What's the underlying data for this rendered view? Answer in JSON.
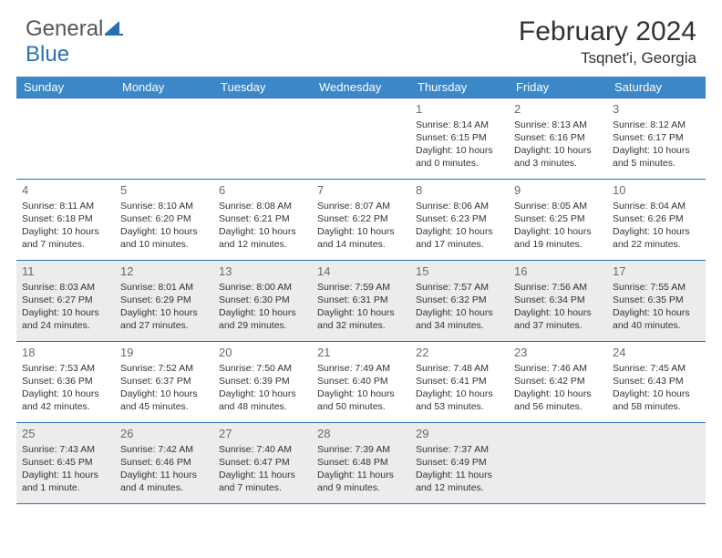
{
  "brand": {
    "part1": "General",
    "part2": "Blue"
  },
  "title": "February 2024",
  "location": "Tsqnet'i, Georgia",
  "colors": {
    "header_bg": "#3b87c8",
    "border": "#2a6fb5",
    "shade": "#ececec",
    "text": "#333333",
    "daynum": "#6a6a6a"
  },
  "day_names": [
    "Sunday",
    "Monday",
    "Tuesday",
    "Wednesday",
    "Thursday",
    "Friday",
    "Saturday"
  ],
  "weeks": [
    [
      {
        "empty": true
      },
      {
        "empty": true
      },
      {
        "empty": true
      },
      {
        "empty": true
      },
      {
        "num": "1",
        "sunrise": "Sunrise: 8:14 AM",
        "sunset": "Sunset: 6:15 PM",
        "daylight": "Daylight: 10 hours and 0 minutes."
      },
      {
        "num": "2",
        "sunrise": "Sunrise: 8:13 AM",
        "sunset": "Sunset: 6:16 PM",
        "daylight": "Daylight: 10 hours and 3 minutes."
      },
      {
        "num": "3",
        "sunrise": "Sunrise: 8:12 AM",
        "sunset": "Sunset: 6:17 PM",
        "daylight": "Daylight: 10 hours and 5 minutes."
      }
    ],
    [
      {
        "num": "4",
        "sunrise": "Sunrise: 8:11 AM",
        "sunset": "Sunset: 6:18 PM",
        "daylight": "Daylight: 10 hours and 7 minutes."
      },
      {
        "num": "5",
        "sunrise": "Sunrise: 8:10 AM",
        "sunset": "Sunset: 6:20 PM",
        "daylight": "Daylight: 10 hours and 10 minutes."
      },
      {
        "num": "6",
        "sunrise": "Sunrise: 8:08 AM",
        "sunset": "Sunset: 6:21 PM",
        "daylight": "Daylight: 10 hours and 12 minutes."
      },
      {
        "num": "7",
        "sunrise": "Sunrise: 8:07 AM",
        "sunset": "Sunset: 6:22 PM",
        "daylight": "Daylight: 10 hours and 14 minutes."
      },
      {
        "num": "8",
        "sunrise": "Sunrise: 8:06 AM",
        "sunset": "Sunset: 6:23 PM",
        "daylight": "Daylight: 10 hours and 17 minutes."
      },
      {
        "num": "9",
        "sunrise": "Sunrise: 8:05 AM",
        "sunset": "Sunset: 6:25 PM",
        "daylight": "Daylight: 10 hours and 19 minutes."
      },
      {
        "num": "10",
        "sunrise": "Sunrise: 8:04 AM",
        "sunset": "Sunset: 6:26 PM",
        "daylight": "Daylight: 10 hours and 22 minutes."
      }
    ],
    [
      {
        "num": "11",
        "sunrise": "Sunrise: 8:03 AM",
        "sunset": "Sunset: 6:27 PM",
        "daylight": "Daylight: 10 hours and 24 minutes."
      },
      {
        "num": "12",
        "sunrise": "Sunrise: 8:01 AM",
        "sunset": "Sunset: 6:29 PM",
        "daylight": "Daylight: 10 hours and 27 minutes."
      },
      {
        "num": "13",
        "sunrise": "Sunrise: 8:00 AM",
        "sunset": "Sunset: 6:30 PM",
        "daylight": "Daylight: 10 hours and 29 minutes."
      },
      {
        "num": "14",
        "sunrise": "Sunrise: 7:59 AM",
        "sunset": "Sunset: 6:31 PM",
        "daylight": "Daylight: 10 hours and 32 minutes."
      },
      {
        "num": "15",
        "sunrise": "Sunrise: 7:57 AM",
        "sunset": "Sunset: 6:32 PM",
        "daylight": "Daylight: 10 hours and 34 minutes."
      },
      {
        "num": "16",
        "sunrise": "Sunrise: 7:56 AM",
        "sunset": "Sunset: 6:34 PM",
        "daylight": "Daylight: 10 hours and 37 minutes."
      },
      {
        "num": "17",
        "sunrise": "Sunrise: 7:55 AM",
        "sunset": "Sunset: 6:35 PM",
        "daylight": "Daylight: 10 hours and 40 minutes."
      }
    ],
    [
      {
        "num": "18",
        "sunrise": "Sunrise: 7:53 AM",
        "sunset": "Sunset: 6:36 PM",
        "daylight": "Daylight: 10 hours and 42 minutes."
      },
      {
        "num": "19",
        "sunrise": "Sunrise: 7:52 AM",
        "sunset": "Sunset: 6:37 PM",
        "daylight": "Daylight: 10 hours and 45 minutes."
      },
      {
        "num": "20",
        "sunrise": "Sunrise: 7:50 AM",
        "sunset": "Sunset: 6:39 PM",
        "daylight": "Daylight: 10 hours and 48 minutes."
      },
      {
        "num": "21",
        "sunrise": "Sunrise: 7:49 AM",
        "sunset": "Sunset: 6:40 PM",
        "daylight": "Daylight: 10 hours and 50 minutes."
      },
      {
        "num": "22",
        "sunrise": "Sunrise: 7:48 AM",
        "sunset": "Sunset: 6:41 PM",
        "daylight": "Daylight: 10 hours and 53 minutes."
      },
      {
        "num": "23",
        "sunrise": "Sunrise: 7:46 AM",
        "sunset": "Sunset: 6:42 PM",
        "daylight": "Daylight: 10 hours and 56 minutes."
      },
      {
        "num": "24",
        "sunrise": "Sunrise: 7:45 AM",
        "sunset": "Sunset: 6:43 PM",
        "daylight": "Daylight: 10 hours and 58 minutes."
      }
    ],
    [
      {
        "num": "25",
        "sunrise": "Sunrise: 7:43 AM",
        "sunset": "Sunset: 6:45 PM",
        "daylight": "Daylight: 11 hours and 1 minute."
      },
      {
        "num": "26",
        "sunrise": "Sunrise: 7:42 AM",
        "sunset": "Sunset: 6:46 PM",
        "daylight": "Daylight: 11 hours and 4 minutes."
      },
      {
        "num": "27",
        "sunrise": "Sunrise: 7:40 AM",
        "sunset": "Sunset: 6:47 PM",
        "daylight": "Daylight: 11 hours and 7 minutes."
      },
      {
        "num": "28",
        "sunrise": "Sunrise: 7:39 AM",
        "sunset": "Sunset: 6:48 PM",
        "daylight": "Daylight: 11 hours and 9 minutes."
      },
      {
        "num": "29",
        "sunrise": "Sunrise: 7:37 AM",
        "sunset": "Sunset: 6:49 PM",
        "daylight": "Daylight: 11 hours and 12 minutes."
      },
      {
        "empty": true
      },
      {
        "empty": true
      }
    ]
  ],
  "shaded_rows": [
    2,
    4
  ]
}
